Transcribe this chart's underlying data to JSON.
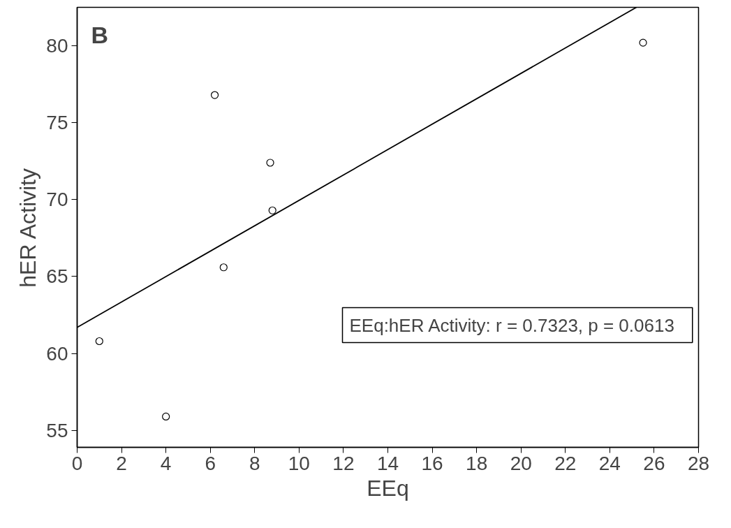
{
  "chart_data": {
    "type": "scatter",
    "xlabel": "EEq",
    "ylabel": "hER Activity",
    "annotations": [
      "B",
      "EEq:hER Activity:   r = 0.7323, p = 0.0613"
    ],
    "xlim": [
      0,
      28
    ],
    "ylim": [
      53.9,
      82.5
    ],
    "xticks": [
      0,
      2,
      4,
      6,
      8,
      10,
      12,
      14,
      16,
      18,
      20,
      22,
      24,
      26,
      28
    ],
    "yticks": [
      55,
      60,
      65,
      70,
      75,
      80
    ],
    "grid": false,
    "series": [
      {
        "color": "#000000",
        "marker": "circle",
        "x": [
          1.0,
          4.0,
          6.2,
          6.6,
          8.7,
          8.8,
          25.5
        ],
        "values": [
          60.8,
          55.9,
          76.8,
          65.6,
          72.4,
          69.3,
          80.2
        ]
      },
      {
        "type": "line",
        "color": "#000000",
        "line_style": "solid",
        "x": [
          0,
          25.2
        ],
        "values": [
          61.7,
          82.5
        ]
      }
    ]
  }
}
